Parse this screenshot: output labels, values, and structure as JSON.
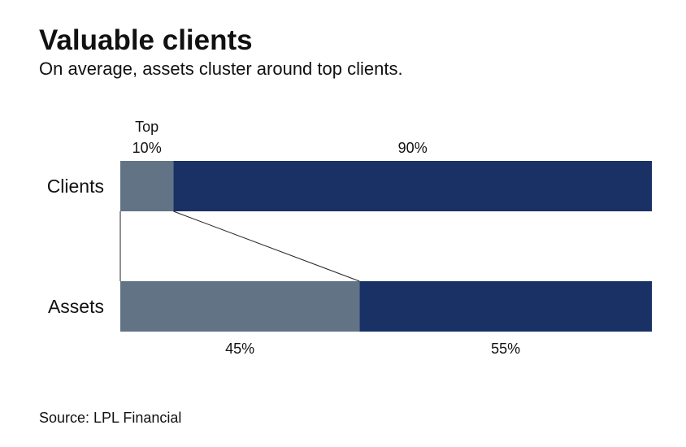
{
  "title": "Valuable clients",
  "subtitle": "On average, assets cluster around top clients.",
  "source": "Source: LPL Financial",
  "colors": {
    "top": "#627386",
    "rest": "#1a3166"
  },
  "chart_data": {
    "type": "bar",
    "orientation": "horizontal-stacked-100",
    "categories": [
      "Clients",
      "Assets"
    ],
    "series": [
      {
        "name": "Top 10%",
        "values": [
          10,
          45
        ],
        "labels": [
          "10%",
          "45%"
        ]
      },
      {
        "values": [
          90,
          55
        ],
        "labels": [
          "90%",
          "55%"
        ]
      }
    ],
    "top_label": "Top",
    "label_positions": [
      "above",
      "below"
    ],
    "xlim": [
      0,
      100
    ]
  }
}
